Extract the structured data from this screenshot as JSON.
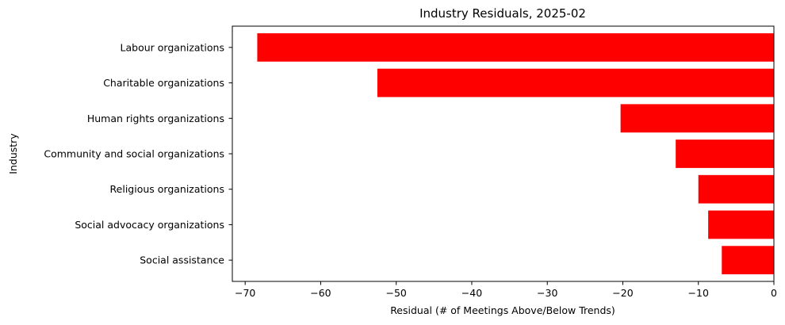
{
  "chart_data": {
    "type": "bar",
    "orientation": "horizontal",
    "title": "Industry Residuals, 2025-02",
    "xlabel": "Residual (# of Meetings Above/Below Trends)",
    "ylabel": "Industry",
    "categories": [
      "Labour organizations",
      "Charitable organizations",
      "Human rights organizations",
      "Community and social organizations",
      "Religious organizations",
      "Social advocacy organizations",
      "Social assistance"
    ],
    "values": [
      -68.4,
      -52.5,
      -20.3,
      -13.0,
      -10.0,
      -8.7,
      -6.9
    ],
    "xlim": [
      -71.7,
      0
    ],
    "xticks": [
      -70,
      -60,
      -50,
      -40,
      -30,
      -20,
      -10,
      0
    ],
    "xtick_labels": [
      "−70",
      "−60",
      "−50",
      "−40",
      "−30",
      "−20",
      "−10",
      "0"
    ],
    "bar_color": "#ff0000",
    "grid": false,
    "legend": "none"
  }
}
